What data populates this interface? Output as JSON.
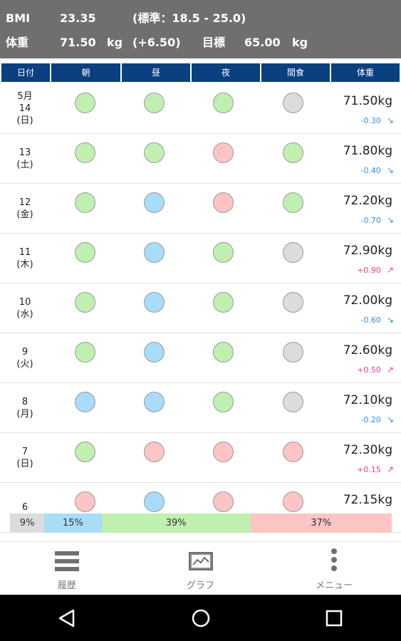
{
  "header": {
    "bmi_label": "BMI",
    "bmi_value": "23.35",
    "bmi_range": "(標準：18.5 - 25.0)",
    "weight_label": "体重",
    "weight_value": "71.50",
    "weight_unit": "kg",
    "weight_diff": "(+6.50)",
    "target_label": "目標",
    "target_value": "65.00",
    "target_unit": "kg"
  },
  "columns": [
    "日付",
    "朝",
    "昼",
    "夜",
    "間食",
    "体重"
  ],
  "colors": {
    "grey": "#dcdcdc",
    "blue": "#a8dcf8",
    "green": "#bff0b0",
    "pink": "#fcc4c4",
    "down": "#3a8ee0",
    "up": "#f03c8c"
  },
  "rows": [
    {
      "date_lines": [
        "5月",
        "14",
        "(日)"
      ],
      "meals": [
        "green",
        "green",
        "green",
        "grey"
      ],
      "weight": "71.50kg",
      "delta": "-0.30",
      "dir": "down"
    },
    {
      "date_lines": [
        "13",
        "(土)"
      ],
      "meals": [
        "green",
        "green",
        "pink",
        "green"
      ],
      "weight": "71.80kg",
      "delta": "-0.40",
      "dir": "down"
    },
    {
      "date_lines": [
        "12",
        "(金)"
      ],
      "meals": [
        "green",
        "blue",
        "pink",
        "green"
      ],
      "weight": "72.20kg",
      "delta": "-0.70",
      "dir": "down"
    },
    {
      "date_lines": [
        "11",
        "(木)"
      ],
      "meals": [
        "green",
        "blue",
        "green",
        "grey"
      ],
      "weight": "72.90kg",
      "delta": "+0.90",
      "dir": "up"
    },
    {
      "date_lines": [
        "10",
        "(水)"
      ],
      "meals": [
        "green",
        "blue",
        "green",
        "grey"
      ],
      "weight": "72.00kg",
      "delta": "-0.60",
      "dir": "down"
    },
    {
      "date_lines": [
        "9",
        "(火)"
      ],
      "meals": [
        "green",
        "blue",
        "green",
        "grey"
      ],
      "weight": "72.60kg",
      "delta": "+0.50",
      "dir": "up"
    },
    {
      "date_lines": [
        "8",
        "(月)"
      ],
      "meals": [
        "blue",
        "blue",
        "green",
        "grey"
      ],
      "weight": "72.10kg",
      "delta": "-0.20",
      "dir": "down"
    },
    {
      "date_lines": [
        "7",
        "(日)"
      ],
      "meals": [
        "green",
        "pink",
        "pink",
        "pink"
      ],
      "weight": "72.30kg",
      "delta": "+0.15",
      "dir": "up"
    },
    {
      "date_lines": [
        "6"
      ],
      "meals": [
        "pink",
        "blue",
        "pink",
        "pink"
      ],
      "weight": "72.15kg",
      "delta": "",
      "dir": ""
    }
  ],
  "summary": [
    {
      "label": "9%",
      "value": 9,
      "color": "grey"
    },
    {
      "label": "15%",
      "value": 15,
      "color": "blue"
    },
    {
      "label": "39%",
      "value": 39,
      "color": "green"
    },
    {
      "label": "37%",
      "value": 37,
      "color": "pink"
    }
  ],
  "nav": {
    "history_label": "履歴",
    "graph_label": "グラフ",
    "menu_label": "メニュー"
  }
}
